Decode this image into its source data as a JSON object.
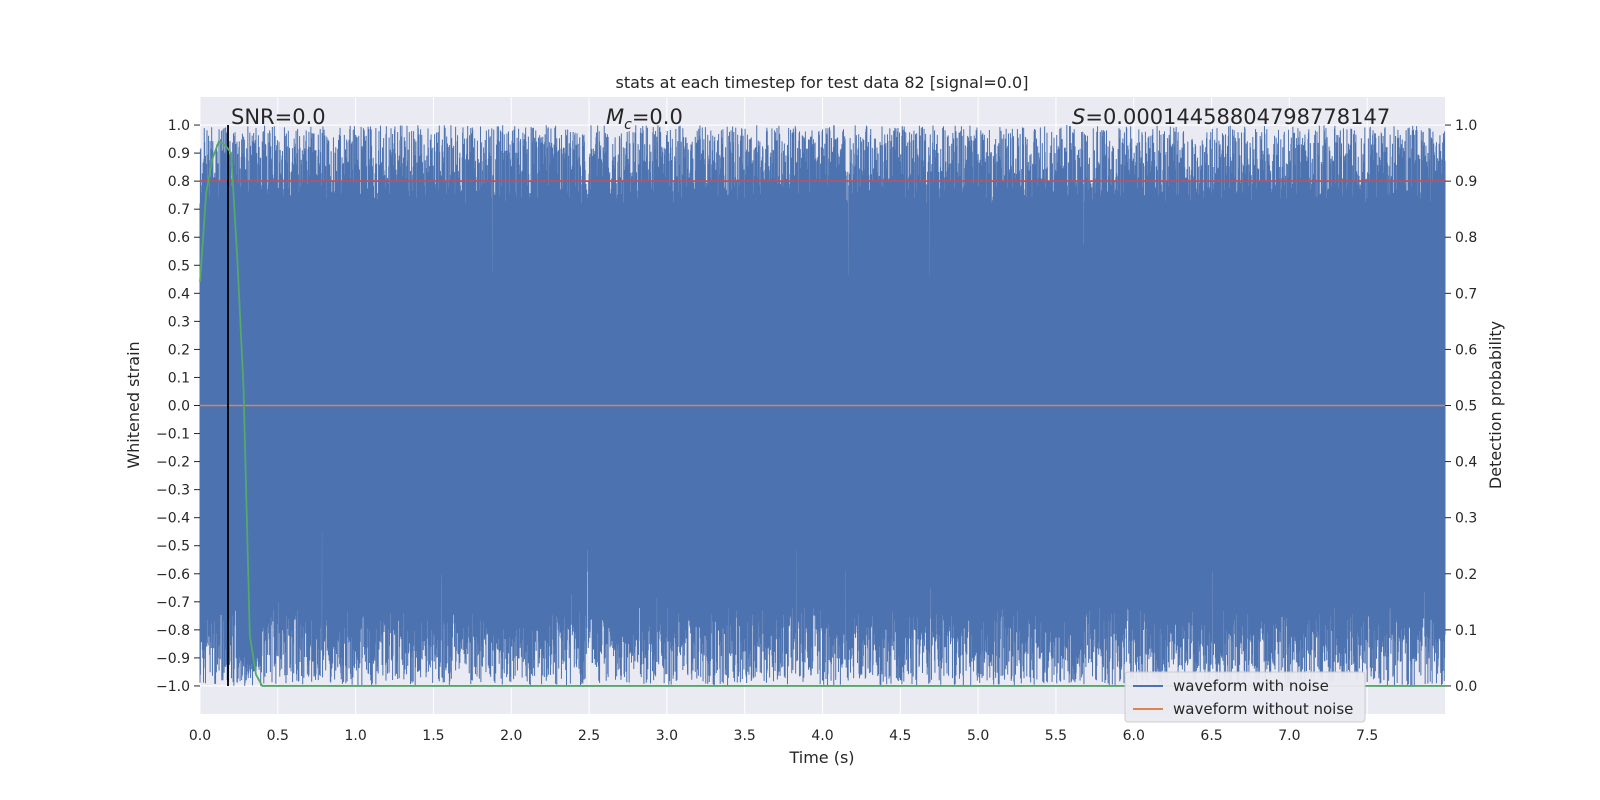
{
  "chart_data": {
    "type": "line",
    "title": "stats at each timestep for test data 82 [signal=0.0]",
    "xlabel": "Time (s)",
    "ylabel": "Whitened strain",
    "ylabel_right": "Detection probability",
    "xlim": [
      0.0,
      8.0
    ],
    "ylim": [
      -1.1,
      1.1
    ],
    "ylim_right": [
      -0.05,
      1.05
    ],
    "x_ticks": [
      "0.0",
      "0.5",
      "1.0",
      "1.5",
      "2.0",
      "2.5",
      "3.0",
      "3.5",
      "4.0",
      "4.5",
      "5.0",
      "5.5",
      "6.0",
      "6.5",
      "7.0",
      "7.5"
    ],
    "y_ticks": [
      "1.0",
      "0.9",
      "0.8",
      "0.7",
      "0.6",
      "0.5",
      "0.4",
      "0.3",
      "0.2",
      "0.1",
      "0.0",
      "−0.1",
      "−0.2",
      "−0.3",
      "−0.4",
      "−0.5",
      "−0.6",
      "−0.7",
      "−0.8",
      "−0.9",
      "−1.0"
    ],
    "y_ticks_right": [
      "1.0",
      "0.9",
      "0.8",
      "0.7",
      "0.6",
      "0.5",
      "0.4",
      "0.3",
      "0.2",
      "0.1",
      "0.0"
    ],
    "annotations": {
      "snr": "SNR=0.0",
      "mc": "=0.0",
      "mc_symbol": "M",
      "mc_sub": "c",
      "s": "=0.000144588047987781­47",
      "s_symbol": "S"
    },
    "vline_x": 0.18,
    "threshold_right": 0.9,
    "series": [
      {
        "name": "waveform with noise",
        "color": "#4c72b0",
        "x_range": [
          0.0,
          8.0
        ],
        "y_range": [
          -1.0,
          1.0
        ]
      },
      {
        "name": "waveform without noise",
        "color": "#dd8452",
        "x": [
          0.0,
          8.0
        ],
        "y": [
          0.0,
          0.0
        ]
      },
      {
        "color": "#55a868",
        "axis": "right",
        "x": [
          0.0,
          0.04,
          0.08,
          0.12,
          0.16,
          0.2,
          0.24,
          0.28,
          0.32,
          0.36,
          0.4,
          8.0
        ],
        "y": [
          0.72,
          0.88,
          0.94,
          0.97,
          0.965,
          0.95,
          0.76,
          0.53,
          0.09,
          0.02,
          0.0,
          0.0
        ]
      }
    ],
    "legend_location": "lower right",
    "grid": true,
    "colors": {
      "plot_bg": "#eaeaf2",
      "grid": "#ffffff",
      "threshold": "#c44e52",
      "vline": "#000000"
    }
  }
}
